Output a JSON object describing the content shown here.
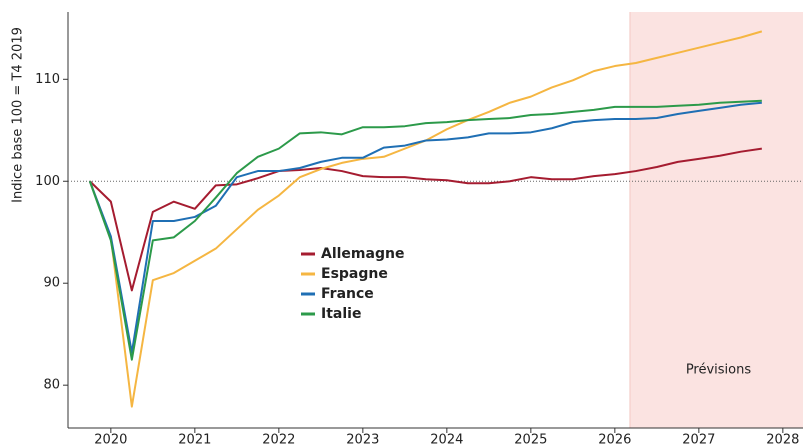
{
  "chart_data": {
    "type": "line",
    "y_label": "Indice base 100 = T4 2019",
    "x": [
      2019.75,
      2020,
      2020.25,
      2020.5,
      2020.75,
      2021,
      2021.25,
      2021.5,
      2021.75,
      2022,
      2022.25,
      2022.5,
      2022.75,
      2023,
      2023.25,
      2023.5,
      2023.75,
      2024,
      2024.25,
      2024.5,
      2024.75,
      2025,
      2025.25,
      2025.5,
      2025.75,
      2026,
      2026.25,
      2026.5,
      2026.75,
      2027,
      2027.25,
      2027.5,
      2027.75
    ],
    "series": [
      {
        "name": "Allemagne",
        "color": "#a51c30",
        "values": [
          100,
          98,
          89.3,
          97,
          98,
          97.3,
          99.6,
          99.7,
          100.3,
          101,
          101.1,
          101.3,
          101,
          100.5,
          100.4,
          100.4,
          100.2,
          100.1,
          99.8,
          99.8,
          100,
          100.4,
          100.2,
          100.2,
          100.5,
          100.7,
          101,
          101.4,
          101.9,
          102.2,
          102.5,
          102.9,
          103.2
        ]
      },
      {
        "name": "Espagne",
        "color": "#f5b642",
        "values": [
          100,
          94.5,
          77.9,
          90.3,
          91,
          92.2,
          93.4,
          95.3,
          97.2,
          98.6,
          100.4,
          101.2,
          101.8,
          102.2,
          102.4,
          103.2,
          104,
          105.1,
          106,
          106.8,
          107.7,
          108.3,
          109.2,
          109.9,
          110.8,
          111.3,
          111.6,
          112.1,
          112.6,
          113.1,
          113.6,
          114.1,
          114.7
        ]
      },
      {
        "name": "France",
        "color": "#1f6fb4",
        "values": [
          100,
          94.6,
          83.2,
          96.1,
          96.1,
          96.5,
          97.6,
          100.4,
          101,
          101,
          101.3,
          101.9,
          102.3,
          102.3,
          103.3,
          103.5,
          104,
          104.1,
          104.3,
          104.7,
          104.7,
          104.8,
          105.2,
          105.8,
          106,
          106.1,
          106.1,
          106.2,
          106.6,
          106.9,
          107.2,
          107.5,
          107.7
        ]
      },
      {
        "name": "Italie",
        "color": "#2c9a4a",
        "values": [
          100,
          94.2,
          82.5,
          94.2,
          94.5,
          96.1,
          98.4,
          100.8,
          102.4,
          103.2,
          104.7,
          104.8,
          104.6,
          105.3,
          105.3,
          105.4,
          105.7,
          105.8,
          106,
          106.1,
          106.2,
          106.5,
          106.6,
          106.8,
          107,
          107.3,
          107.3,
          107.3,
          107.4,
          107.5,
          107.7,
          107.8,
          107.9
        ]
      }
    ],
    "xlim": [
      2019.49,
      2028.24
    ],
    "xticks": [
      2020,
      2021,
      2022,
      2023,
      2024,
      2025,
      2026,
      2027,
      2028
    ],
    "ylim": [
      75.8,
      116.6
    ],
    "yticks": [
      80,
      90,
      100,
      110
    ],
    "reference_line": 100,
    "forecast": {
      "start": 2026.18,
      "label": "Prévisions",
      "color": "#fbe3e1"
    }
  }
}
